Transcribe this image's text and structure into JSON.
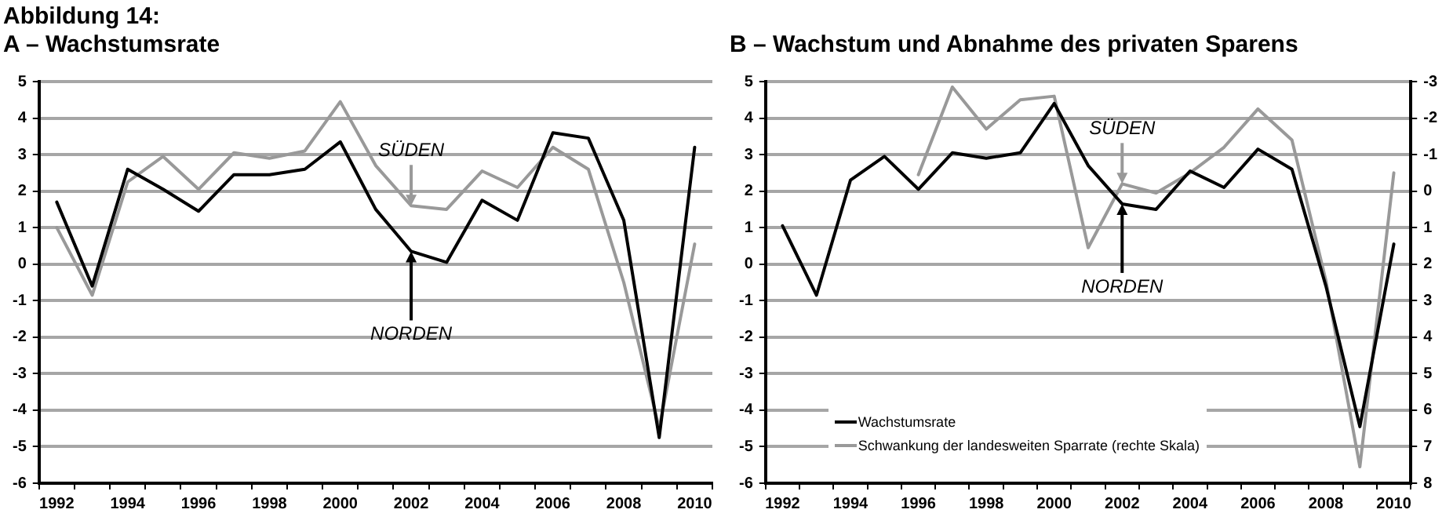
{
  "chart_data": [
    {
      "type": "line",
      "title": "A – Wachstumsrate",
      "annotations": [
        "Abbildung 14:",
        {
          "text": "SÜDEN",
          "x": "2002",
          "y": 1.6
        },
        {
          "text": "NORDEN",
          "x": "2002",
          "y": 0.35
        }
      ],
      "categories": [
        "1992",
        null,
        "1994",
        null,
        "1996",
        null,
        "1998",
        null,
        "2000",
        null,
        "2002",
        null,
        "2004",
        null,
        "2006",
        null,
        "2008",
        null,
        "2010"
      ],
      "series": [
        {
          "color": "#000000",
          "values": [
            1.7,
            -0.6,
            2.6,
            2.05,
            1.45,
            2.45,
            2.45,
            2.6,
            3.35,
            1.5,
            0.35,
            0.05,
            1.75,
            1.2,
            3.6,
            3.45,
            1.2,
            -4.75,
            3.2
          ]
        },
        {
          "color": "#999999",
          "values": [
            1.0,
            -0.85,
            2.25,
            2.95,
            2.05,
            3.05,
            2.9,
            3.1,
            4.45,
            2.7,
            1.6,
            1.5,
            2.55,
            2.1,
            3.2,
            2.6,
            -0.5,
            -4.5,
            0.55
          ]
        }
      ],
      "ylim": [
        -6,
        5
      ],
      "yticks": [
        -6,
        -5,
        -4,
        -3,
        -2,
        -1,
        0,
        1,
        2,
        3,
        4,
        5
      ],
      "grid": "y",
      "marker": "none",
      "line_style": "solid"
    },
    {
      "type": "line",
      "title": "B – Wachstum und Abnahme des privaten Sparens",
      "annotations": [
        {
          "text": "SÜDEN",
          "x": "2002",
          "y": 2.2
        },
        {
          "text": "NORDEN",
          "x": "2002",
          "y": 1.65
        }
      ],
      "categories": [
        "1992",
        null,
        "1994",
        null,
        "1996",
        null,
        "1998",
        null,
        "2000",
        null,
        "2002",
        null,
        "2004",
        null,
        "2006",
        null,
        "2008",
        null,
        "2010"
      ],
      "series": [
        {
          "name": "Wachstumsrate",
          "color": "#000000",
          "values": [
            1.05,
            -0.85,
            2.3,
            2.95,
            2.05,
            3.05,
            2.9,
            3.05,
            4.4,
            2.7,
            1.65,
            1.5,
            2.55,
            2.1,
            3.15,
            2.6,
            -0.6,
            -4.45,
            0.55
          ]
        },
        {
          "name": "Schwankung der landesweiten Sparrate (rechte Skala)",
          "color": "#999999",
          "axis": "y2",
          "values": [
            null,
            null,
            null,
            null,
            -0.45,
            -2.85,
            -1.7,
            -2.5,
            -2.6,
            1.55,
            -0.2,
            0.05,
            -0.5,
            -1.2,
            -2.25,
            -1.4,
            2.45,
            7.55,
            -0.5
          ]
        }
      ],
      "ylim": [
        -6,
        5
      ],
      "yticks": [
        -6,
        -5,
        -4,
        -3,
        -2,
        -1,
        0,
        1,
        2,
        3,
        4,
        5
      ],
      "y2lim": [
        8,
        -3
      ],
      "y2ticks": [
        -3,
        -2,
        -1,
        0,
        1,
        2,
        3,
        4,
        5,
        6,
        7,
        8
      ],
      "grid": "y",
      "legend": "bottom left",
      "marker": "none",
      "line_style": "solid"
    }
  ]
}
